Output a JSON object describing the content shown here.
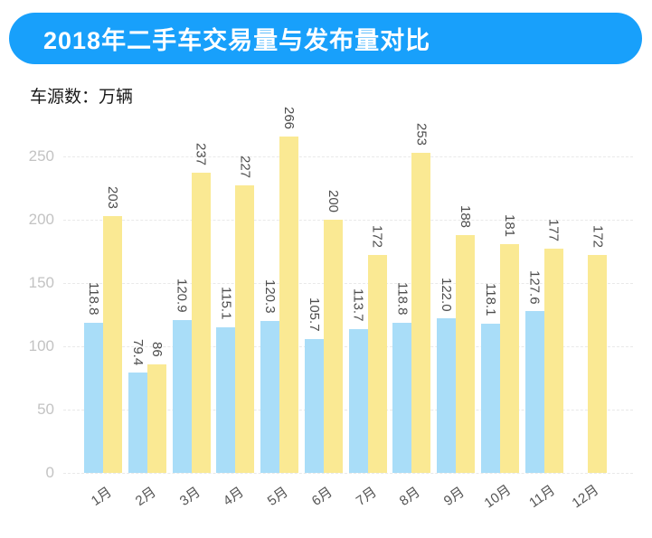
{
  "header": {
    "title": "2018年二手车交易量与发布量对比",
    "bg_color": "#18a0fb",
    "text_color": "#ffffff"
  },
  "y_axis_unit": "车源数：万辆",
  "chart_data": {
    "type": "bar",
    "title": "2018年二手车交易量与发布量对比",
    "categories": [
      "1月",
      "2月",
      "3月",
      "4月",
      "5月",
      "6月",
      "7月",
      "8月",
      "9月",
      "10月",
      "11月",
      "12月"
    ],
    "series": [
      {
        "name": "交易量",
        "color": "#a9ddf8",
        "values": [
          118.8,
          79.4,
          120.9,
          115.1,
          120.3,
          105.7,
          113.7,
          118.8,
          122.0,
          118.1,
          127.6,
          null
        ],
        "labels": [
          "118.8",
          "79.4",
          "120.9",
          "115.1",
          "120.3",
          "105.7",
          "113.7",
          "118.8",
          "122.0",
          "118.1",
          "127.6",
          null
        ]
      },
      {
        "name": "发布量",
        "color": "#fae993",
        "values": [
          203,
          86,
          237,
          227,
          266,
          200,
          172,
          253,
          188,
          181,
          177,
          172
        ],
        "labels": [
          "203",
          "86",
          "237",
          "227",
          "266",
          "200",
          "172",
          "253",
          "188",
          "181",
          "177",
          "172"
        ]
      }
    ],
    "ylabel": "车源数：万辆",
    "xlabel": "",
    "ylim": [
      0,
      250
    ],
    "yticks": [
      0,
      50,
      100,
      150,
      200,
      250
    ],
    "grid": "horizontal-dashed",
    "legend": "none",
    "bar_value_labels": "rotated-90-vertical",
    "x_tick_rotation": -35
  },
  "colors": {
    "grid": "#e9e9e9",
    "tick_label": "#c3c3c3",
    "value_label": "#4d4d4d",
    "month_label": "#555555",
    "background": "#ffffff"
  }
}
